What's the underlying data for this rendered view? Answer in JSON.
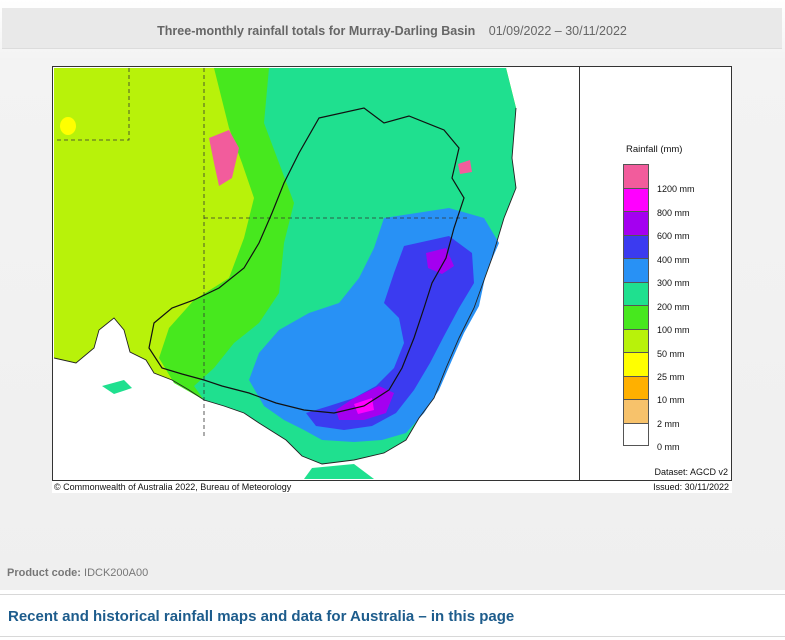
{
  "header": {
    "title": "Three-monthly rainfall totals for Murray-Darling Basin",
    "date_range": "01/09/2022 – 30/11/2022"
  },
  "map": {
    "legend_title": "Rainfall (mm)",
    "legend": [
      {
        "label": "",
        "color": "#f25c9c"
      },
      {
        "label": "1200 mm",
        "color": "#ff00ff"
      },
      {
        "label": "800 mm",
        "color": "#a400f0"
      },
      {
        "label": "600 mm",
        "color": "#3b3bf0"
      },
      {
        "label": "400 mm",
        "color": "#2891f5"
      },
      {
        "label": "300 mm",
        "color": "#1fe08f"
      },
      {
        "label": "200 mm",
        "color": "#47e81e"
      },
      {
        "label": "100 mm",
        "color": "#b8f20a"
      },
      {
        "label": "50 mm",
        "color": "#ffff00"
      },
      {
        "label": "25 mm",
        "color": "#ffb000"
      },
      {
        "label": "10 mm",
        "color": "#f7c26b"
      },
      {
        "label": "2 mm",
        "color": "#ffffff"
      },
      {
        "label": "0 mm",
        "color": ""
      }
    ],
    "dataset": "Dataset: AGCD v2",
    "copyright": "© Commonwealth of Australia 2022, Bureau of Meteorology",
    "issued": "Issued: 30/11/2022"
  },
  "product": {
    "label": "Product code:",
    "code": "IDCK200A00"
  },
  "section_link": "Recent and historical rainfall maps and data for Australia – in this page"
}
